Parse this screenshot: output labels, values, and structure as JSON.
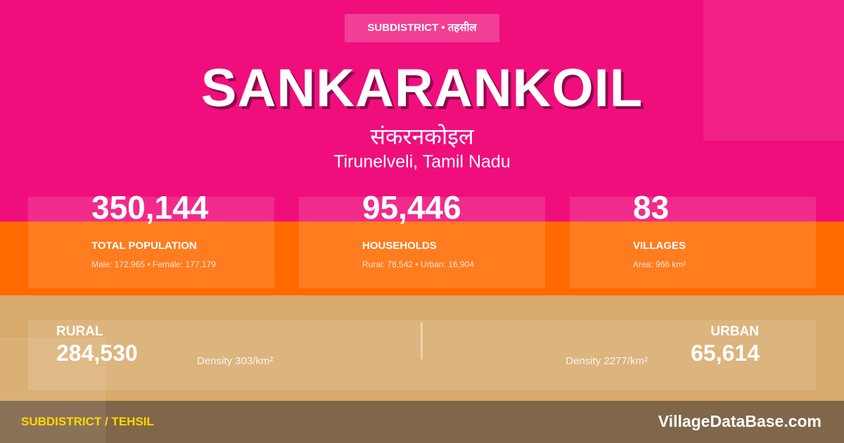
{
  "header": {
    "badge": "SUBDISTRICT • तहसील",
    "title": "SANKARANKOIL",
    "title_hindi": "संकरनकोइल",
    "location": "Tirunelveli, Tamil Nadu"
  },
  "stats": [
    {
      "value": "350,144",
      "label": "TOTAL POPULATION",
      "detail": "Male: 172,965 • Female: 177,179"
    },
    {
      "value": "95,446",
      "label": "HOUSEHOLDS",
      "detail": "Rural: 78,542 • Urban: 16,904"
    },
    {
      "value": "83",
      "label": "VILLAGES",
      "detail": "Area: 966 km²"
    }
  ],
  "split": {
    "rural": {
      "label": "RURAL",
      "value": "284,530",
      "density": "Density 303/km²"
    },
    "urban": {
      "label": "URBAN",
      "value": "65,614",
      "density": "Density 2277/km²"
    }
  },
  "footer": {
    "category": "SUBDISTRICT / TEHSIL",
    "site": "VillageDataBase.com"
  }
}
